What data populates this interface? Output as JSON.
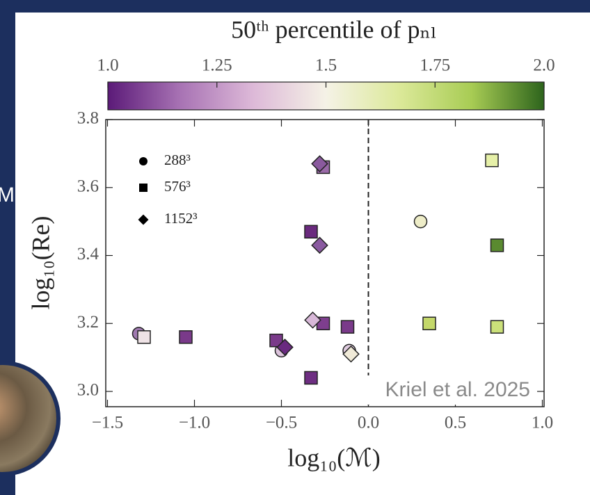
{
  "slide_fragment": "M",
  "chart_data": {
    "type": "scatter",
    "colorbar": {
      "title": "50ᵗʰ percentile of pₙₗ",
      "lim": [
        1,
        2
      ],
      "ticks": [
        {
          "value": 1,
          "label": "1.0"
        },
        1.25,
        1.5,
        1.75,
        {
          "value": 2,
          "label": "2.0"
        }
      ],
      "colormap": [
        "#5b1a78",
        "#a873b4",
        "#ddb9d8",
        "#f5f2e6",
        "#dce99a",
        "#a8cc54",
        "#2d641c"
      ]
    },
    "x_label": "log₁₀(ℳ)",
    "y_label": "log₁₀(Re)",
    "xlim": [
      -1.51,
      1.01
    ],
    "ylim": [
      2.955,
      3.8
    ],
    "xticks": [
      {
        "value": -1.5,
        "label": "−1.5"
      },
      {
        "value": -1,
        "label": "−1.0"
      },
      {
        "value": -0.5,
        "label": "−0.5"
      },
      {
        "value": 0,
        "label": "0.0"
      },
      0.5,
      {
        "value": 1,
        "label": "1.0"
      }
    ],
    "yticks": [
      {
        "value": 3,
        "label": "3.0"
      },
      3.2,
      3.4,
      3.6,
      3.8
    ],
    "vline": 0,
    "annotation": "Kriel et al. 2025",
    "series": [
      {
        "name": "288³",
        "marker": "circle",
        "color": "#000000",
        "x": [
          -1.32,
          -0.5,
          -0.11,
          0.3
        ],
        "values": [
          3.17,
          3.12,
          3.12,
          3.5
        ],
        "colors": [
          "#a07ab0",
          "#dcc3dc",
          "#e0cce0",
          "#eeedc8"
        ]
      },
      {
        "name": "576³",
        "marker": "square",
        "color": "#000000",
        "x": [
          -1.29,
          -1.05,
          -0.53,
          -0.33,
          -0.26,
          -0.26,
          -0.12,
          -0.33,
          0.71,
          0.74,
          0.35,
          0.74
        ],
        "values": [
          3.16,
          3.16,
          3.15,
          3.47,
          3.66,
          3.2,
          3.19,
          3.04,
          3.68,
          3.43,
          3.2,
          3.19
        ],
        "colors": [
          "#efe3e6",
          "#7a3a8a",
          "#7a3a8a",
          "#6a2a7e",
          "#9a6aa8",
          "#7e3e8e",
          "#7a3a8a",
          "#6e2e82",
          "#e6f0a8",
          "#5a8a30",
          "#c4d86a",
          "#cbe07a"
        ]
      },
      {
        "name": "1152³",
        "marker": "diamond",
        "color": "#000000",
        "x": [
          -0.28,
          -0.28,
          -0.32,
          -0.48,
          -0.1
        ],
        "values": [
          3.67,
          3.43,
          3.21,
          3.13,
          3.11
        ],
        "colors": [
          "#8a5a9e",
          "#8a5aa0",
          "#d8b8d8",
          "#6a2a80",
          "#f0ead8"
        ]
      }
    ]
  }
}
